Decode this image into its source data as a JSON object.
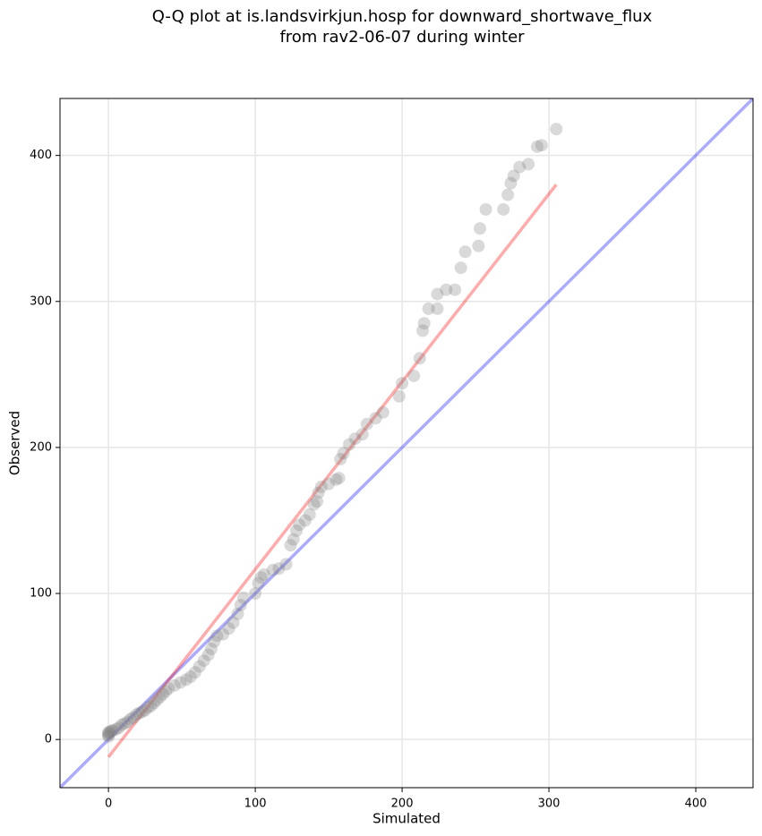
{
  "chart_data": {
    "type": "scatter",
    "title": [
      "Q-Q plot at is.landsvirkjun.hosp for downward_shortwave_flux",
      "from rav2-06-07 during winter"
    ],
    "x_label": "Simulated",
    "y_label": "Observed",
    "xlim": [
      -33,
      439
    ],
    "ylim": [
      -33,
      439
    ],
    "xticks": [
      0,
      100,
      200,
      300,
      400
    ],
    "yticks": [
      0,
      100,
      200,
      300,
      400
    ],
    "grid": true,
    "color": "#808080",
    "x": [
      0,
      0,
      0,
      0,
      1,
      2,
      3,
      5,
      7,
      9,
      11,
      13,
      15,
      17,
      19,
      21,
      23,
      25,
      27,
      29,
      31,
      33,
      35,
      37,
      39,
      41,
      45,
      49,
      53,
      56,
      59,
      62,
      65,
      68,
      70,
      72,
      74,
      78,
      82,
      85,
      88,
      90,
      92,
      100,
      102,
      104,
      106,
      112,
      116,
      121,
      124,
      126,
      128,
      130,
      134,
      137,
      140,
      142,
      143,
      145,
      150,
      155,
      157,
      158,
      160,
      164,
      168,
      173,
      176,
      182,
      187,
      198,
      200,
      208,
      212,
      214,
      215,
      218,
      224,
      224,
      230,
      236,
      240,
      243,
      252,
      253,
      257,
      269,
      272,
      274,
      276,
      280,
      286,
      292,
      295,
      305
    ],
    "values": [
      2,
      3,
      4,
      5,
      5,
      6,
      6,
      7,
      8,
      10,
      11,
      12,
      14,
      15,
      17,
      18,
      19,
      20,
      22,
      23,
      25,
      27,
      29,
      31,
      33,
      35,
      37,
      39,
      41,
      43,
      46,
      50,
      54,
      58,
      62,
      67,
      71,
      72,
      76,
      80,
      86,
      92,
      97,
      100,
      107,
      111,
      113,
      116,
      117,
      120,
      133,
      137,
      143,
      147,
      150,
      154,
      161,
      163,
      169,
      173,
      175,
      178,
      179,
      192,
      196,
      202,
      206,
      209,
      216,
      220,
      224,
      235,
      244,
      249,
      261,
      280,
      285,
      295,
      295,
      305,
      308,
      308,
      323,
      334,
      338,
      350,
      363,
      363,
      373,
      381,
      386,
      392,
      394,
      406,
      407,
      418
    ],
    "lines": [
      {
        "color": "#0000ff",
        "x": [
          -33,
          439
        ],
        "values": [
          -33,
          439
        ]
      },
      {
        "color": "#ff0000",
        "x": [
          0,
          305
        ],
        "values": [
          -12,
          380
        ]
      }
    ]
  }
}
